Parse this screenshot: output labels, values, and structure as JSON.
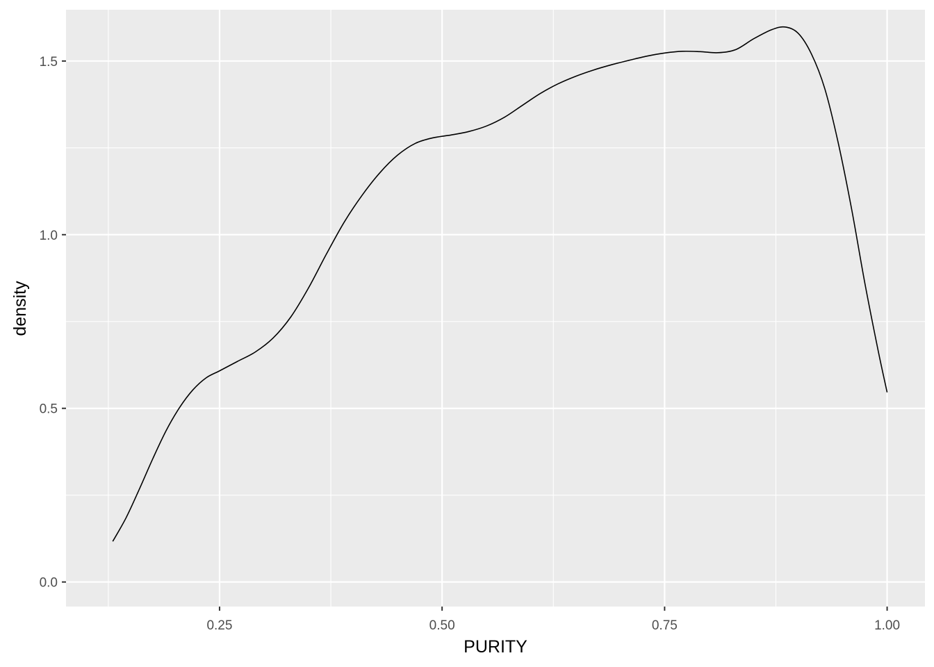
{
  "chart_data": {
    "type": "line",
    "title": "",
    "xlabel": "PURITY",
    "ylabel": "density",
    "xlim": [
      0.0775,
      1.0425
    ],
    "ylim": [
      -0.0707,
      1.6477
    ],
    "x_ticks": [
      0.25,
      0.5,
      0.75,
      1.0
    ],
    "x_tick_labels": [
      "0.25",
      "0.50",
      "0.75",
      "1.00"
    ],
    "x_minor_ticks": [
      0.125,
      0.375,
      0.625,
      0.875
    ],
    "y_ticks": [
      0.0,
      0.5,
      1.0,
      1.5
    ],
    "y_tick_labels": [
      "0.0",
      "0.5",
      "1.0",
      "1.5"
    ],
    "y_minor_ticks": [
      0.25,
      0.75,
      1.25
    ],
    "grid": true,
    "legend": "none",
    "colors": {
      "panel": "#ebebeb",
      "grid": "#ffffff",
      "line": "#000000",
      "tick_text": "#4d4d4d",
      "title_text": "#000000"
    },
    "series": [
      {
        "x": [
          0.13,
          0.145,
          0.16,
          0.175,
          0.19,
          0.205,
          0.22,
          0.235,
          0.25,
          0.27,
          0.29,
          0.31,
          0.33,
          0.35,
          0.37,
          0.39,
          0.41,
          0.43,
          0.45,
          0.47,
          0.49,
          0.51,
          0.53,
          0.55,
          0.57,
          0.59,
          0.61,
          0.63,
          0.65,
          0.67,
          0.69,
          0.71,
          0.73,
          0.75,
          0.77,
          0.79,
          0.81,
          0.83,
          0.85,
          0.87,
          0.885,
          0.9,
          0.915,
          0.93,
          0.945,
          0.96,
          0.975,
          0.99,
          1.0
        ],
        "y": [
          0.117,
          0.185,
          0.268,
          0.355,
          0.436,
          0.502,
          0.553,
          0.588,
          0.608,
          0.635,
          0.662,
          0.702,
          0.763,
          0.847,
          0.944,
          1.036,
          1.113,
          1.178,
          1.229,
          1.263,
          1.279,
          1.287,
          1.297,
          1.313,
          1.338,
          1.372,
          1.406,
          1.434,
          1.456,
          1.474,
          1.489,
          1.502,
          1.514,
          1.523,
          1.528,
          1.527,
          1.524,
          1.533,
          1.564,
          1.59,
          1.598,
          1.58,
          1.52,
          1.42,
          1.265,
          1.075,
          0.86,
          0.665,
          0.546
        ]
      }
    ]
  }
}
